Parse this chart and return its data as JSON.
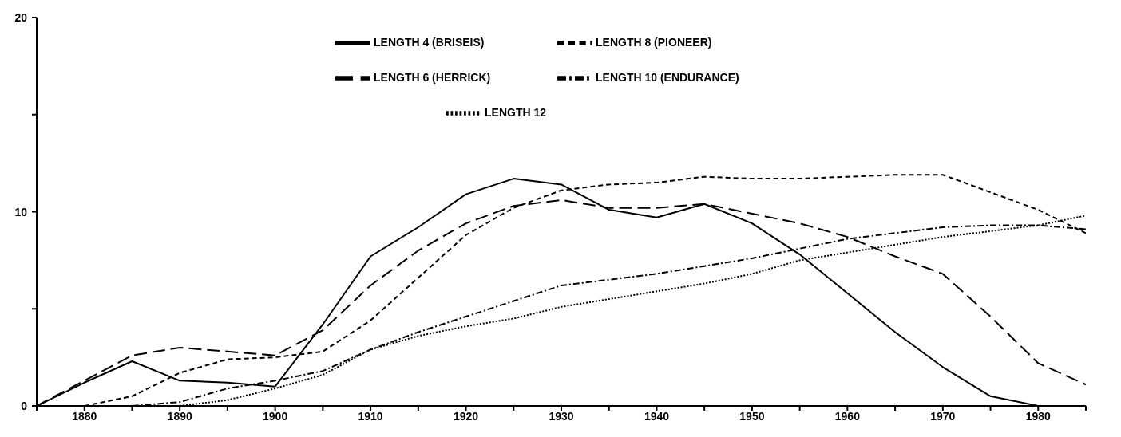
{
  "chart_data": {
    "type": "line",
    "x": [
      1875,
      1880,
      1885,
      1890,
      1895,
      1900,
      1905,
      1910,
      1915,
      1920,
      1925,
      1930,
      1935,
      1940,
      1945,
      1950,
      1955,
      1960,
      1965,
      1970,
      1975,
      1980,
      1985
    ],
    "series": [
      {
        "name": "LENGTH 4 (BRISEIS)",
        "color": "#000000",
        "line_style": "solid",
        "values": [
          0,
          1.2,
          2.3,
          1.3,
          1.2,
          1.0,
          4.2,
          7.7,
          9.2,
          10.9,
          11.7,
          11.4,
          10.1,
          9.7,
          10.4,
          9.4,
          7.8,
          5.8,
          3.8,
          2.0,
          0.5,
          0,
          0
        ]
      },
      {
        "name": "LENGTH 6 (HERRICK)",
        "color": "#000000",
        "line_style": "longdash",
        "values": [
          0,
          1.3,
          2.6,
          3.0,
          2.8,
          2.6,
          3.9,
          6.2,
          8.0,
          9.4,
          10.3,
          10.6,
          10.2,
          10.2,
          10.4,
          9.9,
          9.4,
          8.7,
          7.7,
          6.8,
          4.6,
          2.2,
          1.1
        ]
      },
      {
        "name": "LENGTH 8 (PIONEER)",
        "color": "#000000",
        "line_style": "dashed",
        "values": [
          0,
          0,
          0.5,
          1.7,
          2.4,
          2.5,
          2.8,
          4.4,
          6.6,
          8.8,
          10.2,
          11.1,
          11.4,
          11.5,
          11.8,
          11.7,
          11.7,
          11.8,
          11.9,
          11.9,
          11.0,
          10.1,
          8.9
        ]
      },
      {
        "name": "LENGTH 10 (ENDURANCE)",
        "color": "#000000",
        "line_style": "dashdot",
        "values": [
          null,
          null,
          0,
          0.2,
          0.9,
          1.3,
          1.8,
          2.9,
          3.8,
          4.6,
          5.4,
          6.2,
          6.5,
          6.8,
          7.2,
          7.6,
          8.1,
          8.6,
          8.9,
          9.2,
          9.3,
          9.3,
          9.1
        ]
      },
      {
        "name": "LENGTH 12",
        "color": "#000000",
        "line_style": "dotted",
        "values": [
          null,
          null,
          null,
          0,
          0.3,
          0.9,
          1.6,
          2.9,
          3.6,
          4.1,
          4.5,
          5.1,
          5.5,
          5.9,
          6.3,
          6.8,
          7.5,
          7.9,
          8.3,
          8.7,
          9.0,
          9.3,
          9.8
        ]
      }
    ],
    "xlim": [
      1875,
      1985
    ],
    "xticks": [
      {
        "value": 1875,
        "label": null
      },
      1880,
      {
        "value": 1885,
        "label": null
      },
      1890,
      {
        "value": 1895,
        "label": null
      },
      1900,
      {
        "value": 1905,
        "label": null
      },
      1910,
      {
        "value": 1915,
        "label": null
      },
      1920,
      {
        "value": 1925,
        "label": null
      },
      1930,
      {
        "value": 1935,
        "label": null
      },
      1940,
      {
        "value": 1945,
        "label": null
      },
      1950,
      {
        "value": 1955,
        "label": null
      },
      1960,
      {
        "value": 1965,
        "label": null
      },
      1970,
      {
        "value": 1975,
        "label": null
      },
      1980,
      {
        "value": 1985,
        "label": null
      }
    ],
    "ylim": [
      0,
      20
    ],
    "yticks": [
      0,
      {
        "value": 5,
        "label": null
      },
      10,
      {
        "value": 15,
        "label": null
      },
      20
    ],
    "grid": false,
    "legend": "top",
    "marker": "none"
  }
}
